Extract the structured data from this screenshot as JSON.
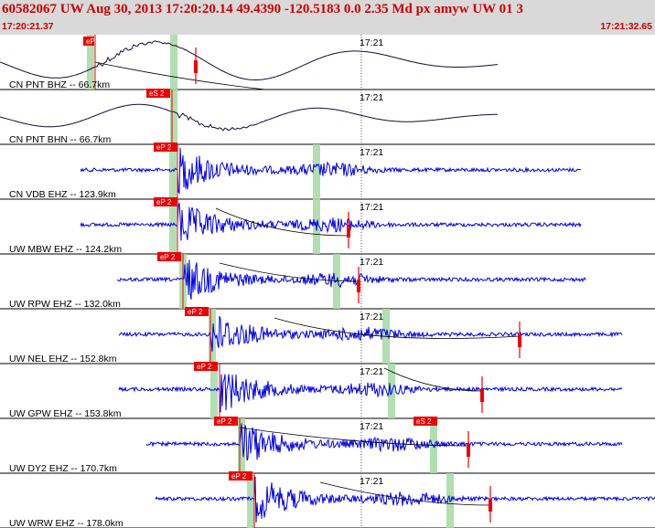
{
  "header": {
    "title": "60582067 UW Aug 30, 2013 17:20:20.14    49.4390 -120.5183  0.0 2.35 Md px amyw UW 01    3",
    "start_time": "17:20:21.37",
    "end_time": "17:21:32.65"
  },
  "colors": {
    "header_bg": "#d9d9d9",
    "header_text": "#cc0000",
    "short_period_trace": "#0000ee",
    "broadband_trace": "#1a0a3a",
    "pick_box": "#ee0000",
    "window_band": "#a8dca8",
    "separator": "#000000"
  },
  "traces": [
    {
      "label": "CN PNT BHZ -- 66.7km",
      "minute_label": "17:21",
      "pick": "eP 1",
      "type": "broadband"
    },
    {
      "label": "CN PNT BHN -- 66.7km",
      "minute_label": "17:21",
      "pick": "eS 2",
      "type": "broadband"
    },
    {
      "label": "CN VDB EHZ -- 123.9km",
      "minute_label": "17:21",
      "pick": "eP 2",
      "type": "short-period"
    },
    {
      "label": "UW MBW EHZ -- 124.2km",
      "minute_label": "17:21",
      "pick": "eP 2",
      "type": "short-period"
    },
    {
      "label": "UW RPW EHZ -- 132.0km",
      "minute_label": "17:21",
      "pick": "eP 2",
      "type": "short-period"
    },
    {
      "label": "UW NEL EHZ -- 152.8km",
      "minute_label": "17:21",
      "pick": "eP 2",
      "type": "short-period"
    },
    {
      "label": "UW GPW EHZ -- 153.8km",
      "minute_label": "17:21",
      "pick": "eP 2",
      "type": "short-period"
    },
    {
      "label": "UW DY2 EHZ -- 170.7km",
      "minute_label": "17:21",
      "pick": "eP 2",
      "pick2": "eS 2",
      "type": "short-period"
    },
    {
      "label": "UW WRW EHZ -- 178.0km",
      "minute_label": "17:21",
      "pick": "eP 2",
      "type": "short-period"
    }
  ]
}
